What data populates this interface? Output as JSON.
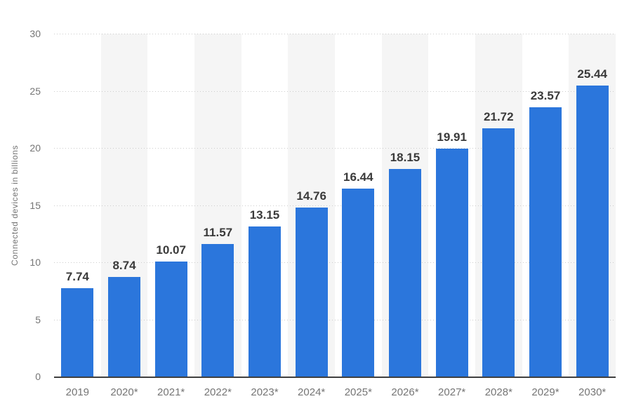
{
  "chart_data": {
    "type": "bar",
    "title": "",
    "xlabel": "",
    "ylabel": "Connected devices in billions",
    "categories": [
      "2019",
      "2020*",
      "2021*",
      "2022*",
      "2023*",
      "2024*",
      "2025*",
      "2026*",
      "2027*",
      "2028*",
      "2029*",
      "2030*"
    ],
    "values": [
      7.74,
      8.74,
      10.07,
      11.57,
      13.15,
      14.76,
      16.44,
      18.15,
      19.91,
      21.72,
      23.57,
      25.44
    ],
    "value_labels": [
      "7.74",
      "8.74",
      "10.07",
      "11.57",
      "13.15",
      "14.76",
      "16.44",
      "18.15",
      "19.91",
      "21.72",
      "23.57",
      "25.44"
    ],
    "ylim": [
      0,
      30
    ],
    "yticks": [
      0,
      5,
      10,
      15,
      20,
      25,
      30
    ],
    "grid": "horizontal-dotted",
    "legend": "none",
    "column_stripes": "alternating, on even columns starting with 2020*"
  },
  "colors": {
    "background": "#ffffff",
    "bar_fill": "#2b76dc",
    "axis_line": "#3f3f3f",
    "grid_line": "#cccccc",
    "stripe": "#f5f5f5",
    "tick_text": "#757575",
    "value_text": "#3a3a3a"
  }
}
